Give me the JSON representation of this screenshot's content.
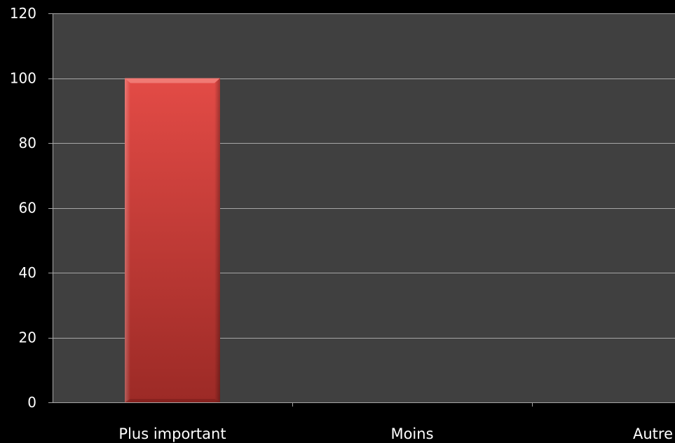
{
  "chart_data": {
    "type": "bar",
    "categories": [
      "Plus important",
      "Moins",
      "Autre"
    ],
    "values": [
      100,
      0,
      0
    ],
    "title": "",
    "xlabel": "",
    "ylabel": "",
    "ylim": [
      0,
      120
    ],
    "yticks": [
      0,
      20,
      40,
      60,
      80,
      100,
      120
    ],
    "grid": true,
    "legend": "none",
    "colors": {
      "page_background": "#000000",
      "plot_background": "#404040",
      "gridline": "#a6a6a6",
      "bar_top": "#e34b46",
      "bar_bottom": "#9c2a26",
      "text": "#ffffff"
    }
  }
}
